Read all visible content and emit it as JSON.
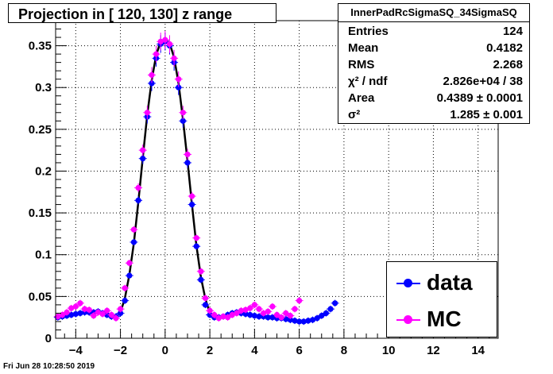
{
  "title": "Projection in [ 120, 130] z range",
  "stats": {
    "name": "InnerPadRcSigmaSQ_34SigmaSQ",
    "rows": [
      {
        "label": "Entries",
        "value": "124"
      },
      {
        "label": "Mean",
        "value": "0.4182"
      },
      {
        "label": "RMS",
        "value": "2.268"
      },
      {
        "label": "χ² / ndf",
        "value": "2.826e+04 / 38"
      },
      {
        "label": "Area",
        "value": "0.4389 ± 0.0001"
      },
      {
        "label": "σ²",
        "value": "1.285 ± 0.001"
      }
    ]
  },
  "legend": {
    "items": [
      {
        "label": "data",
        "color": "#0000ff"
      },
      {
        "label": "MC",
        "color": "#ff00ff"
      }
    ]
  },
  "date_stamp": "Fri Jun 28 10:28:50 2019",
  "chart_data": {
    "type": "scatter",
    "title": "Projection in [ 120, 130] z range",
    "xlabel": "",
    "ylabel": "",
    "xlim": [
      -4.9,
      14.9
    ],
    "ylim": [
      0,
      0.38
    ],
    "xticks": [
      -4,
      -2,
      0,
      2,
      4,
      6,
      8,
      10,
      12,
      14
    ],
    "yticks": [
      0.05,
      0.1,
      0.15,
      0.2,
      0.25,
      0.3,
      0.35
    ],
    "grid": true,
    "legend_position": "bottom-right",
    "series": [
      {
        "name": "data",
        "color": "#0000ff",
        "x": [
          -4.8,
          -4.6,
          -4.4,
          -4.2,
          -4.0,
          -3.8,
          -3.6,
          -3.4,
          -3.2,
          -3.0,
          -2.8,
          -2.6,
          -2.4,
          -2.2,
          -2.0,
          -1.8,
          -1.6,
          -1.4,
          -1.2,
          -1.0,
          -0.8,
          -0.6,
          -0.4,
          -0.2,
          0.0,
          0.2,
          0.4,
          0.6,
          0.8,
          1.0,
          1.2,
          1.4,
          1.6,
          1.8,
          2.0,
          2.2,
          2.4,
          2.6,
          2.8,
          3.0,
          3.2,
          3.4,
          3.6,
          3.8,
          4.0,
          4.2,
          4.4,
          4.6,
          4.8,
          5.0,
          5.2,
          5.4,
          5.6,
          5.8,
          6.0,
          6.2,
          6.4,
          6.6,
          6.8,
          7.0,
          7.2,
          7.4,
          7.6
        ],
        "y": [
          0.025,
          0.026,
          0.027,
          0.028,
          0.029,
          0.03,
          0.031,
          0.031,
          0.031,
          0.032,
          0.03,
          0.028,
          0.026,
          0.026,
          0.03,
          0.045,
          0.075,
          0.115,
          0.165,
          0.215,
          0.265,
          0.305,
          0.335,
          0.352,
          0.355,
          0.35,
          0.33,
          0.3,
          0.26,
          0.21,
          0.16,
          0.11,
          0.07,
          0.04,
          0.028,
          0.025,
          0.025,
          0.026,
          0.028,
          0.03,
          0.031,
          0.03,
          0.029,
          0.028,
          0.027,
          0.026,
          0.026,
          0.025,
          0.025,
          0.024,
          0.024,
          0.023,
          0.022,
          0.021,
          0.02,
          0.02,
          0.021,
          0.022,
          0.024,
          0.027,
          0.03,
          0.035,
          0.042
        ]
      },
      {
        "name": "MC",
        "color": "#ff00ff",
        "x": [
          -4.8,
          -4.6,
          -4.4,
          -4.2,
          -4.0,
          -3.8,
          -3.6,
          -3.4,
          -3.2,
          -3.0,
          -2.8,
          -2.6,
          -2.4,
          -2.2,
          -2.0,
          -1.8,
          -1.6,
          -1.4,
          -1.2,
          -1.0,
          -0.8,
          -0.6,
          -0.4,
          -0.2,
          0.0,
          0.2,
          0.4,
          0.6,
          0.8,
          1.0,
          1.2,
          1.4,
          1.6,
          1.8,
          2.0,
          2.2,
          2.4,
          2.6,
          2.8,
          3.0,
          3.2,
          3.4,
          3.6,
          3.8,
          4.0,
          4.2,
          4.4,
          4.6,
          4.8,
          5.0,
          5.2,
          5.4,
          5.6,
          5.8,
          6.0
        ],
        "y": [
          0.026,
          0.028,
          0.031,
          0.036,
          0.038,
          0.042,
          0.035,
          0.034,
          0.027,
          0.031,
          0.029,
          0.033,
          0.028,
          0.024,
          0.035,
          0.06,
          0.09,
          0.13,
          0.18,
          0.225,
          0.27,
          0.315,
          0.34,
          0.355,
          0.357,
          0.352,
          0.335,
          0.31,
          0.27,
          0.22,
          0.17,
          0.12,
          0.08,
          0.048,
          0.033,
          0.028,
          0.024,
          0.026,
          0.025,
          0.028,
          0.03,
          0.033,
          0.034,
          0.036,
          0.04,
          0.035,
          0.03,
          0.032,
          0.038,
          0.028,
          0.025,
          0.03,
          0.027,
          0.035,
          0.045
        ]
      },
      {
        "name": "fit",
        "color": "#000000",
        "type": "line",
        "x": [
          -2.0,
          -1.8,
          -1.6,
          -1.4,
          -1.2,
          -1.0,
          -0.8,
          -0.6,
          -0.4,
          -0.2,
          0.0,
          0.2,
          0.4,
          0.6,
          0.8,
          1.0,
          1.2,
          1.4,
          1.6,
          1.8,
          2.0
        ],
        "y": [
          0.031,
          0.048,
          0.076,
          0.114,
          0.163,
          0.216,
          0.267,
          0.309,
          0.339,
          0.355,
          0.358,
          0.353,
          0.336,
          0.305,
          0.262,
          0.212,
          0.16,
          0.111,
          0.073,
          0.047,
          0.03
        ]
      }
    ]
  }
}
